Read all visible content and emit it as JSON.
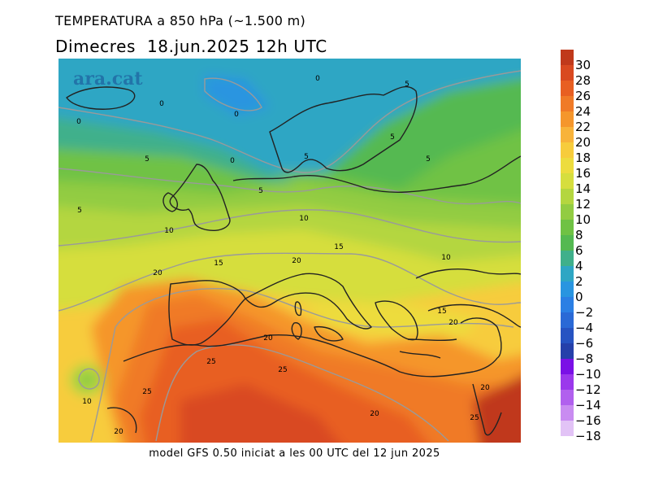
{
  "header": {
    "title": "TEMPERATURA a 850 hPa (~1.500 m)",
    "date_line": "Dimecres  18.jun.2025 12h UTC"
  },
  "map": {
    "watermark": "ara.cat",
    "contour_labels": [
      "0",
      "0",
      "0",
      "0",
      "0",
      "5",
      "5",
      "5",
      "5",
      "5",
      "5",
      "5",
      "10",
      "10",
      "10",
      "10",
      "15",
      "15",
      "15",
      "20",
      "20",
      "20",
      "20",
      "20",
      "20",
      "20",
      "25",
      "25",
      "25",
      "25"
    ]
  },
  "footer": {
    "caption": "model GFS 0.50 iniciat a les 00 UTC del 12 jun 2025"
  },
  "legend": {
    "labels": [
      "30",
      "28",
      "26",
      "24",
      "22",
      "20",
      "18",
      "16",
      "14",
      "12",
      "10",
      "8",
      "6",
      "4",
      "2",
      "0",
      "−2",
      "−4",
      "−6",
      "−8",
      "−10",
      "−12",
      "−14",
      "−16",
      "−18"
    ],
    "colors": [
      "#c0391b",
      "#d94920",
      "#e85f22",
      "#f07a27",
      "#f5962c",
      "#f8b33a",
      "#f7cc3c",
      "#eddc3e",
      "#d6de3e",
      "#b4d63f",
      "#92cc42",
      "#6fc244",
      "#54b951",
      "#3fb08b",
      "#2ea6c4",
      "#2995e0",
      "#2b7fe4",
      "#2a69d6",
      "#2653c2",
      "#2540aa",
      "#7a10e6",
      "#9b38ec",
      "#b160ee",
      "#c98cf1",
      "#e2c3f6"
    ]
  }
}
